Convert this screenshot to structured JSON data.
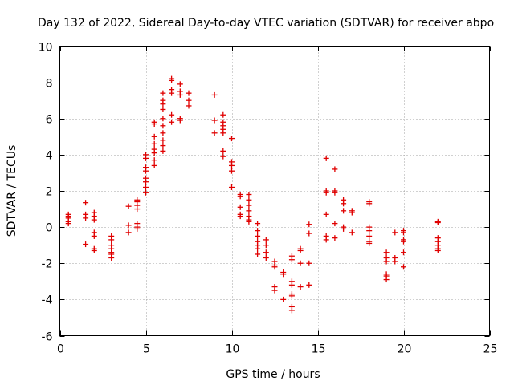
{
  "chart_data": {
    "type": "scatter",
    "title": "Day 132 of 2022, Sidereal Day-to-day VTEC variation (SDTVAR) for receiver abpo",
    "xlabel": "GPS time / hours",
    "ylabel": "SDTVAR / TECUs",
    "xlim": [
      0,
      25
    ],
    "ylim": [
      -6,
      10
    ],
    "xticks": [
      0,
      5,
      10,
      15,
      20,
      25
    ],
    "yticks": [
      -6,
      -4,
      -2,
      0,
      2,
      4,
      6,
      8,
      10
    ],
    "grid": true,
    "marker": "plus",
    "color": "#e00000",
    "series": [
      {
        "name": "SDTVAR",
        "points": [
          [
            0.5,
            0.7
          ],
          [
            0.5,
            0.6
          ],
          [
            0.5,
            0.5
          ],
          [
            0.5,
            0.3
          ],
          [
            0.5,
            0.2
          ],
          [
            1.5,
            1.35
          ],
          [
            1.5,
            0.7
          ],
          [
            1.5,
            0.5
          ],
          [
            1.5,
            -0.95
          ],
          [
            2.0,
            0.8
          ],
          [
            2.0,
            0.6
          ],
          [
            2.0,
            0.4
          ],
          [
            2.0,
            -0.3
          ],
          [
            2.0,
            -0.5
          ],
          [
            2.0,
            -1.2
          ],
          [
            2.0,
            -1.3
          ],
          [
            3.0,
            -0.5
          ],
          [
            3.0,
            -0.7
          ],
          [
            3.0,
            -1.0
          ],
          [
            3.0,
            -1.2
          ],
          [
            3.0,
            -1.4
          ],
          [
            3.0,
            -1.5
          ],
          [
            3.0,
            -1.7
          ],
          [
            4.0,
            1.15
          ],
          [
            4.0,
            0.1
          ],
          [
            4.0,
            -0.3
          ],
          [
            4.5,
            1.5
          ],
          [
            4.5,
            1.4
          ],
          [
            4.5,
            1.2
          ],
          [
            4.5,
            1.0
          ],
          [
            4.5,
            0.2
          ],
          [
            4.5,
            0.0
          ],
          [
            4.5,
            -0.1
          ],
          [
            5.0,
            4.0
          ],
          [
            5.0,
            3.8
          ],
          [
            5.0,
            3.3
          ],
          [
            5.0,
            3.1
          ],
          [
            5.0,
            2.7
          ],
          [
            5.0,
            2.5
          ],
          [
            5.0,
            2.2
          ],
          [
            5.0,
            1.9
          ],
          [
            5.5,
            5.8
          ],
          [
            5.5,
            5.7
          ],
          [
            5.5,
            5.0
          ],
          [
            5.5,
            4.6
          ],
          [
            5.5,
            4.3
          ],
          [
            5.5,
            4.1
          ],
          [
            5.5,
            3.7
          ],
          [
            5.5,
            3.4
          ],
          [
            6.0,
            7.4
          ],
          [
            6.0,
            7.0
          ],
          [
            6.0,
            6.8
          ],
          [
            6.0,
            6.5
          ],
          [
            6.0,
            6.0
          ],
          [
            6.0,
            5.6
          ],
          [
            6.0,
            5.2
          ],
          [
            6.0,
            4.8
          ],
          [
            6.0,
            4.5
          ],
          [
            6.0,
            4.2
          ],
          [
            6.5,
            8.2
          ],
          [
            6.5,
            8.1
          ],
          [
            6.5,
            7.6
          ],
          [
            6.5,
            7.4
          ],
          [
            6.5,
            6.2
          ],
          [
            6.5,
            5.8
          ],
          [
            7.0,
            7.9
          ],
          [
            7.0,
            7.5
          ],
          [
            7.0,
            7.3
          ],
          [
            7.0,
            6.0
          ],
          [
            7.0,
            5.9
          ],
          [
            7.5,
            7.4
          ],
          [
            7.5,
            7.0
          ],
          [
            7.5,
            6.7
          ],
          [
            9.0,
            7.3
          ],
          [
            9.0,
            5.9
          ],
          [
            9.0,
            5.2
          ],
          [
            9.5,
            6.2
          ],
          [
            9.5,
            5.8
          ],
          [
            9.5,
            5.6
          ],
          [
            9.5,
            5.4
          ],
          [
            9.5,
            5.2
          ],
          [
            9.5,
            4.2
          ],
          [
            9.5,
            3.9
          ],
          [
            10.0,
            4.9
          ],
          [
            10.0,
            3.6
          ],
          [
            10.0,
            3.4
          ],
          [
            10.0,
            3.1
          ],
          [
            10.0,
            2.2
          ],
          [
            10.5,
            1.8
          ],
          [
            10.5,
            1.7
          ],
          [
            10.5,
            1.1
          ],
          [
            10.5,
            0.7
          ],
          [
            10.5,
            0.6
          ],
          [
            11.0,
            1.8
          ],
          [
            11.0,
            1.5
          ],
          [
            11.0,
            1.2
          ],
          [
            11.0,
            0.9
          ],
          [
            11.0,
            0.6
          ],
          [
            11.0,
            0.4
          ],
          [
            11.0,
            0.3
          ],
          [
            11.5,
            0.2
          ],
          [
            11.5,
            -0.2
          ],
          [
            11.5,
            -0.5
          ],
          [
            11.5,
            -0.8
          ],
          [
            11.5,
            -1.0
          ],
          [
            11.5,
            -1.2
          ],
          [
            11.5,
            -1.5
          ],
          [
            12.0,
            -0.7
          ],
          [
            12.0,
            -1.0
          ],
          [
            12.0,
            -1.4
          ],
          [
            12.0,
            -1.7
          ],
          [
            12.5,
            -1.9
          ],
          [
            12.5,
            -2.1
          ],
          [
            12.5,
            -2.2
          ],
          [
            12.5,
            -3.3
          ],
          [
            12.5,
            -3.5
          ],
          [
            13.0,
            -2.5
          ],
          [
            13.0,
            -2.6
          ],
          [
            13.0,
            -4.0
          ],
          [
            13.5,
            -1.6
          ],
          [
            13.5,
            -1.8
          ],
          [
            13.5,
            -3.0
          ],
          [
            13.5,
            -3.2
          ],
          [
            13.5,
            -3.7
          ],
          [
            13.5,
            -3.8
          ],
          [
            13.5,
            -4.4
          ],
          [
            13.5,
            -4.6
          ],
          [
            14.0,
            -1.2
          ],
          [
            14.0,
            -1.3
          ],
          [
            14.0,
            -2.0
          ],
          [
            14.0,
            -3.3
          ],
          [
            14.5,
            0.15
          ],
          [
            14.5,
            -0.35
          ],
          [
            14.5,
            -2.0
          ],
          [
            14.5,
            -3.2
          ],
          [
            15.5,
            3.8
          ],
          [
            15.5,
            2.0
          ],
          [
            15.5,
            1.9
          ],
          [
            15.5,
            0.7
          ],
          [
            15.5,
            -0.5
          ],
          [
            15.5,
            -0.7
          ],
          [
            16.0,
            3.2
          ],
          [
            16.0,
            2.0
          ],
          [
            16.0,
            1.9
          ],
          [
            16.0,
            0.2
          ],
          [
            16.0,
            -0.6
          ],
          [
            16.5,
            1.5
          ],
          [
            16.5,
            1.3
          ],
          [
            16.5,
            0.9
          ],
          [
            16.5,
            0.0
          ],
          [
            16.5,
            -0.1
          ],
          [
            17.0,
            0.9
          ],
          [
            17.0,
            0.8
          ],
          [
            17.0,
            -0.3
          ],
          [
            18.0,
            1.4
          ],
          [
            18.0,
            1.3
          ],
          [
            18.0,
            0.0
          ],
          [
            18.0,
            -0.2
          ],
          [
            18.0,
            -0.5
          ],
          [
            18.0,
            -0.8
          ],
          [
            18.0,
            -0.9
          ],
          [
            19.0,
            -1.4
          ],
          [
            19.0,
            -1.7
          ],
          [
            19.0,
            -1.9
          ],
          [
            19.0,
            -2.6
          ],
          [
            19.0,
            -2.7
          ],
          [
            19.0,
            -2.9
          ],
          [
            19.5,
            -0.3
          ],
          [
            19.5,
            -1.7
          ],
          [
            19.5,
            -1.9
          ],
          [
            20.0,
            -0.2
          ],
          [
            20.0,
            -0.3
          ],
          [
            20.0,
            -0.7
          ],
          [
            20.0,
            -0.8
          ],
          [
            20.0,
            -1.4
          ],
          [
            20.0,
            -2.2
          ],
          [
            22.0,
            0.3
          ],
          [
            22.0,
            0.25
          ],
          [
            22.0,
            -0.6
          ],
          [
            22.0,
            -0.8
          ],
          [
            22.0,
            -1.0
          ],
          [
            22.0,
            -1.2
          ],
          [
            22.0,
            -1.3
          ]
        ]
      }
    ]
  }
}
